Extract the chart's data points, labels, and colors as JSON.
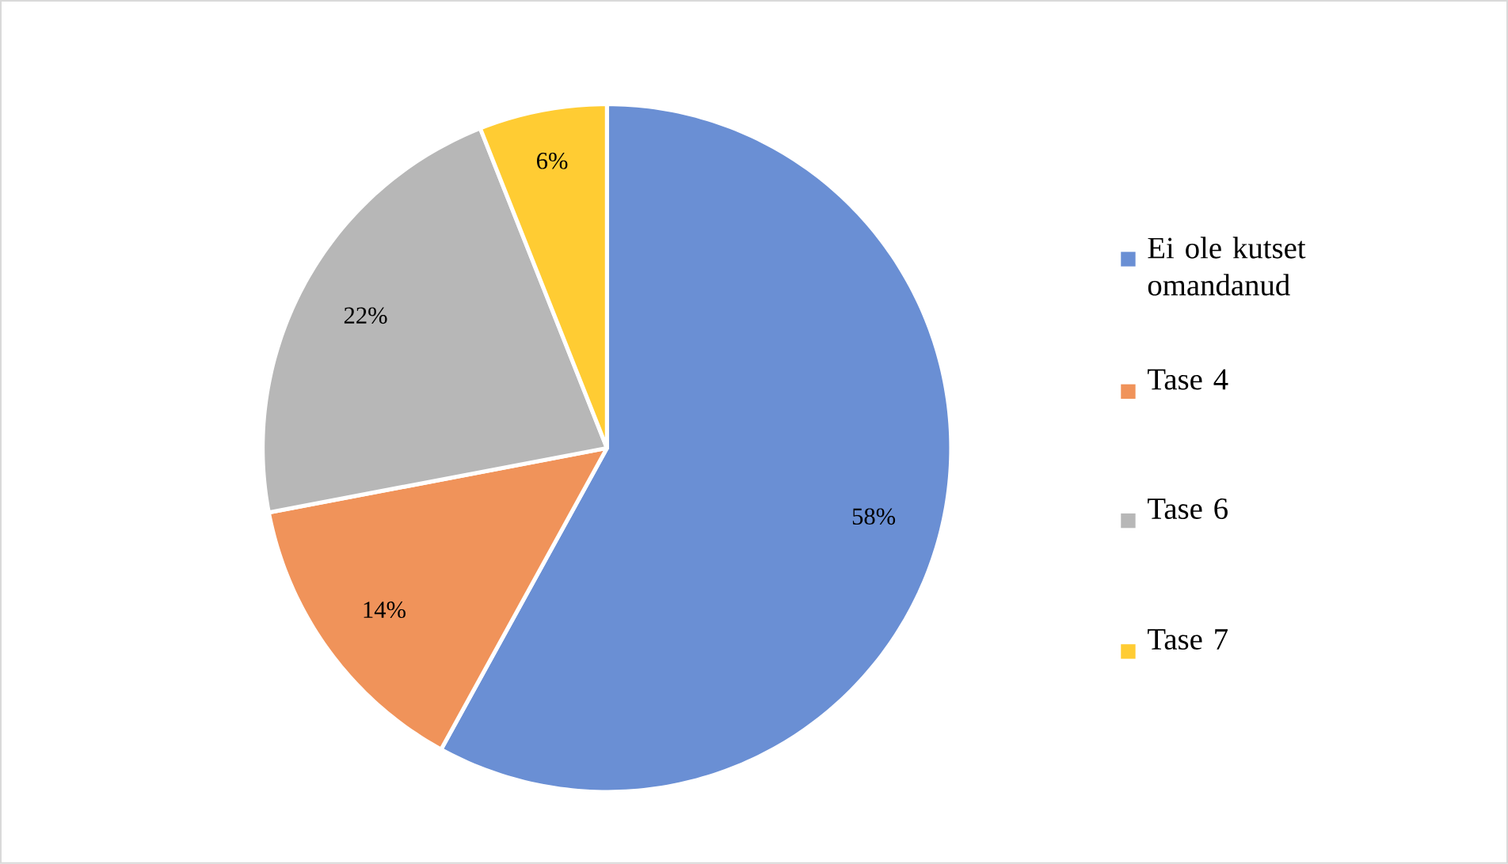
{
  "chart_data": {
    "type": "pie",
    "categories": [
      "Ei ole kutset omandanud",
      "Tase 4",
      "Tase 6",
      "Tase 7"
    ],
    "values": [
      58,
      14,
      22,
      6
    ],
    "colors": [
      "#6a8fd4",
      "#f0935a",
      "#b7b7b7",
      "#ffcc33"
    ],
    "value_labels": [
      "58%",
      "14%",
      "22%",
      "6%"
    ],
    "legend": "right"
  }
}
